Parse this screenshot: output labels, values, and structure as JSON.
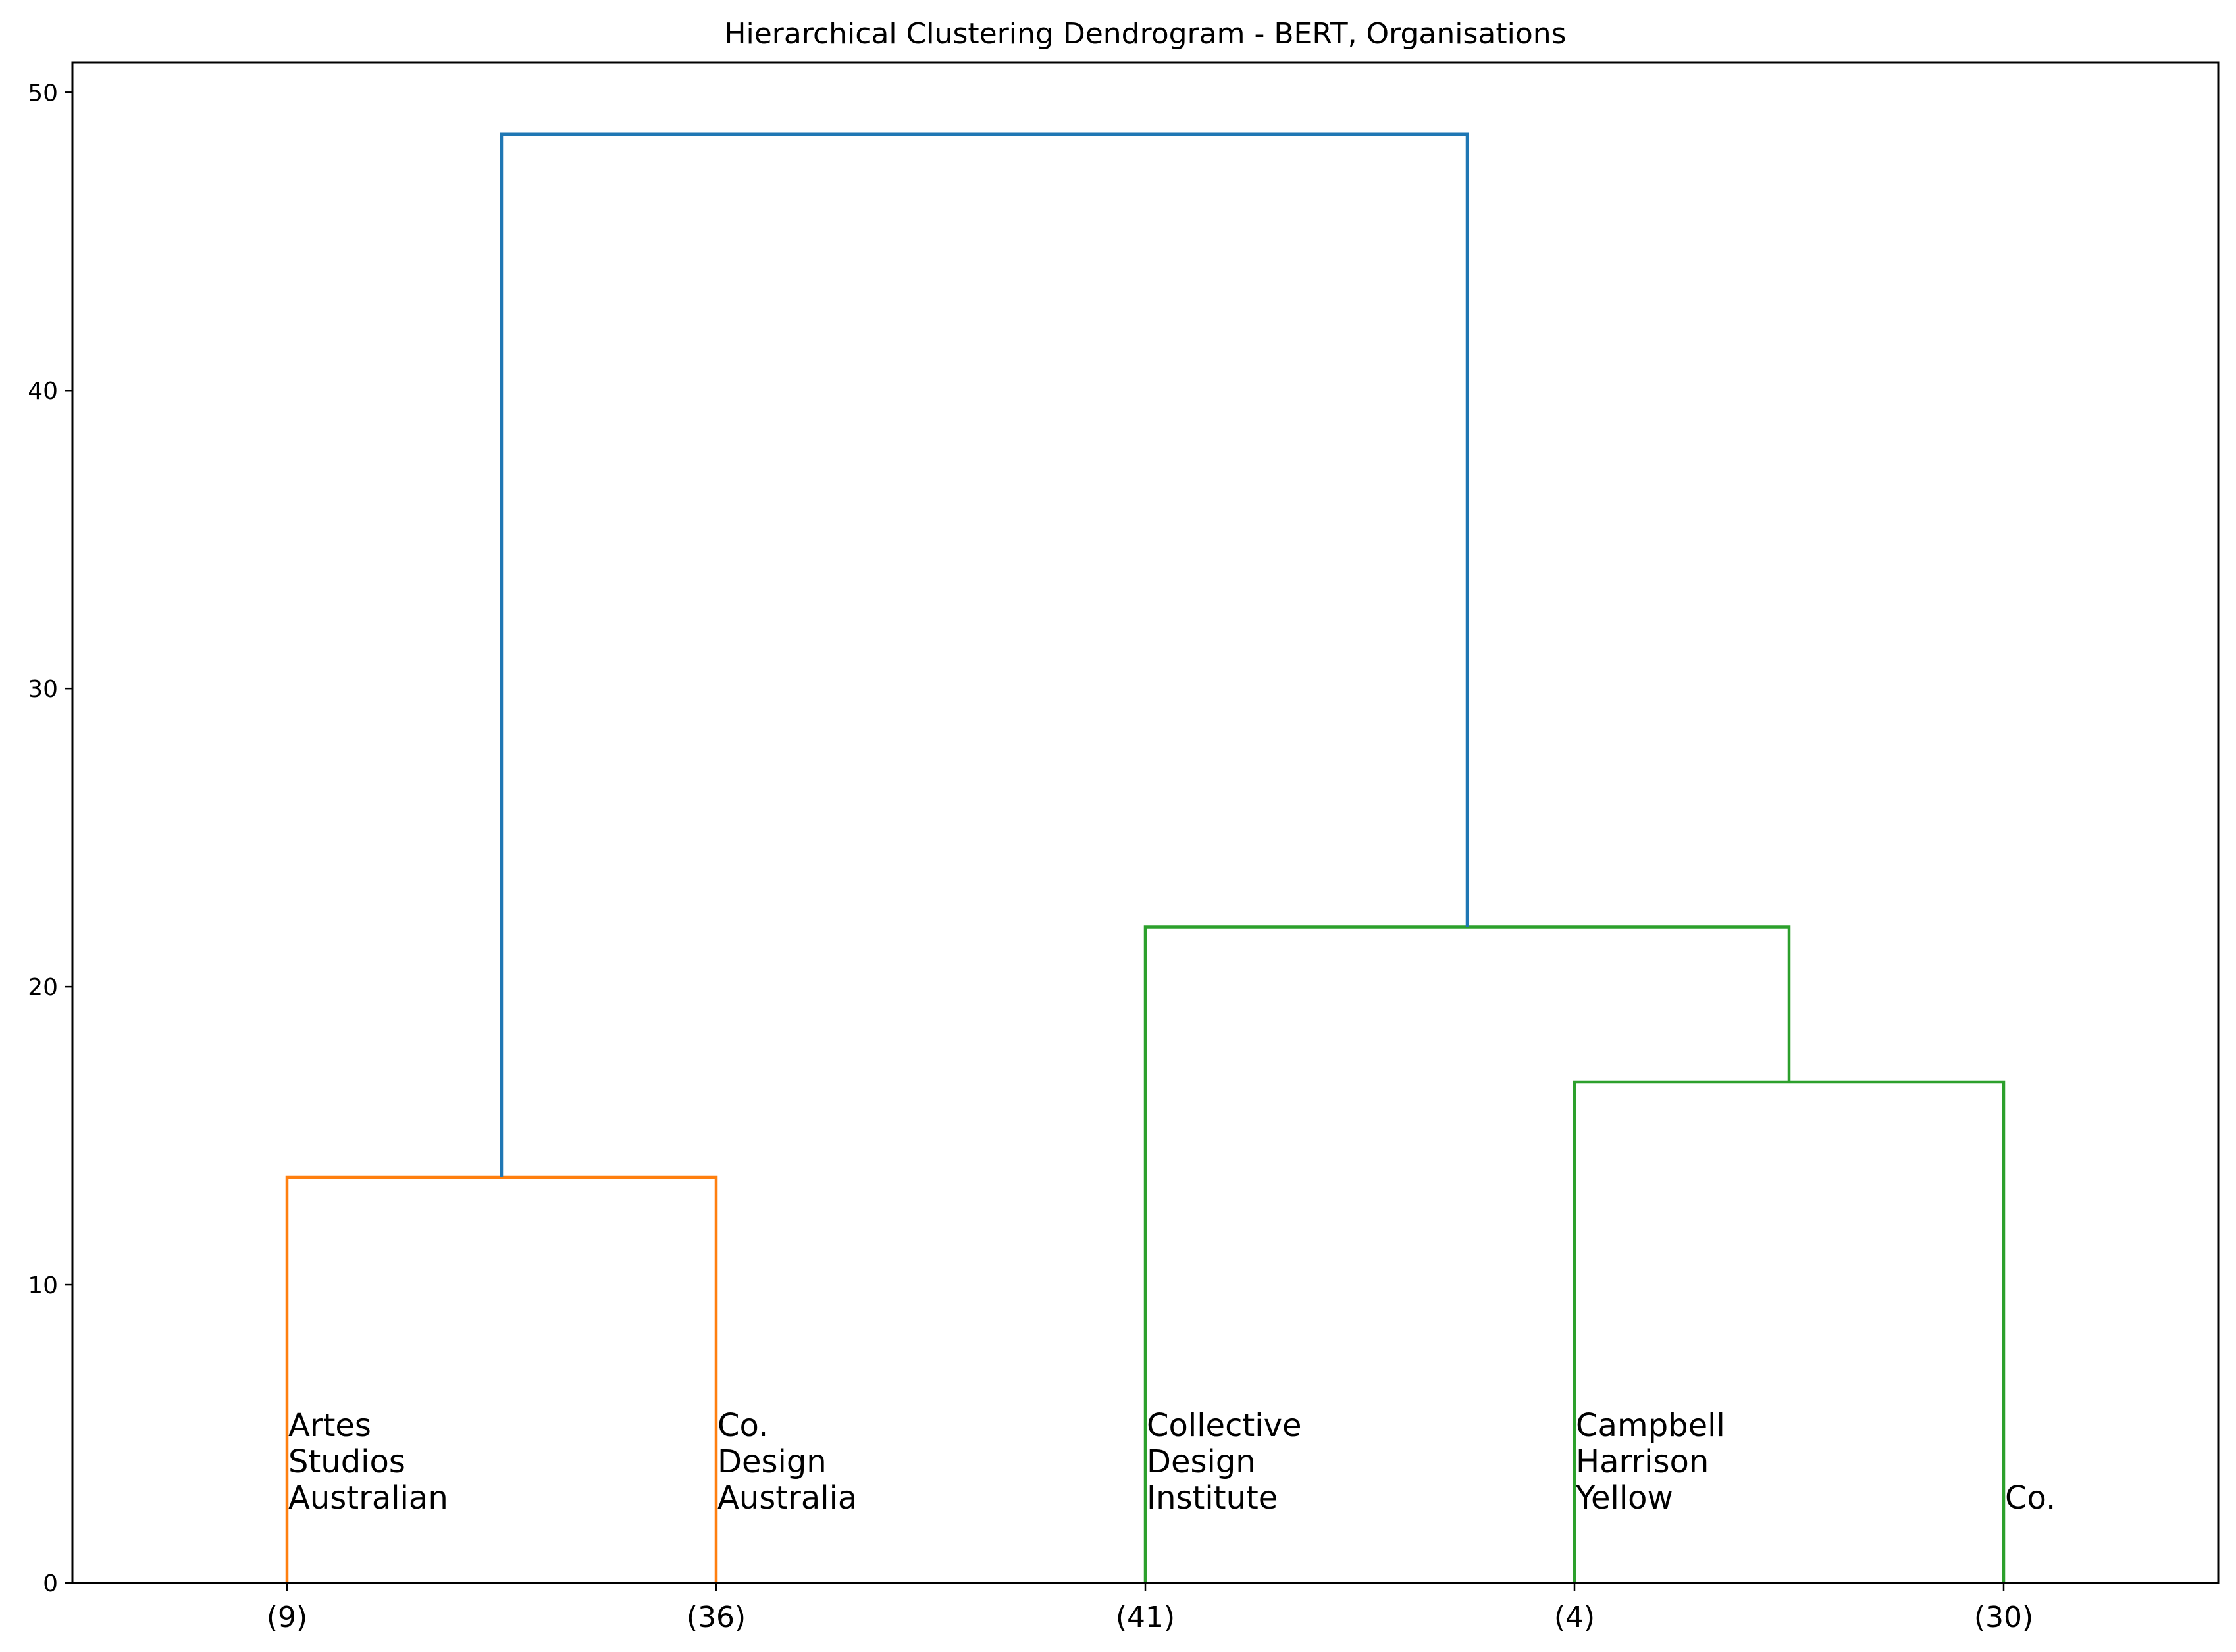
{
  "chart_data": {
    "type": "dendrogram",
    "title": "Hierarchical Clustering Dendrogram - BERT, Organisations",
    "xlabel": "",
    "ylabel": "",
    "ylim": [
      0,
      51
    ],
    "yticks": [
      0,
      10,
      20,
      30,
      40,
      50
    ],
    "grid": false,
    "leaves": [
      "(9)",
      "(36)",
      "(41)",
      "(4)",
      "(30)"
    ],
    "links": [
      {
        "left": "(9)",
        "right": "(36)",
        "height": 13.6,
        "color": "#ff7f0e"
      },
      {
        "left": "(4)",
        "right": "(30)",
        "height": 16.8,
        "color": "#2ca02c"
      },
      {
        "left": "(41)",
        "right": "(4)+(30)",
        "height": 22.0,
        "color": "#2ca02c"
      },
      {
        "left": "(9)+(36)",
        "right": "(41)+(4)+(30)",
        "height": 48.6,
        "color": "#1f77b4"
      }
    ],
    "annotations": [
      {
        "leaf": "(9)",
        "lines": [
          "Artes",
          "Studios",
          "Australian"
        ]
      },
      {
        "leaf": "(36)",
        "lines": [
          "Co.",
          "Design",
          "Australia"
        ]
      },
      {
        "leaf": "(41)",
        "lines": [
          "Collective",
          "Design",
          "Institute"
        ]
      },
      {
        "leaf": "(4)",
        "lines": [
          "Campbell",
          "Harrison",
          "Yellow"
        ]
      },
      {
        "leaf": "(30)",
        "lines": [
          "Co."
        ]
      }
    ]
  }
}
